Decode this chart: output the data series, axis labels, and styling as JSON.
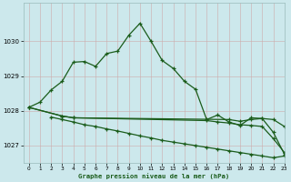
{
  "bg_color": "#cce8ec",
  "grid_color": "#aacccc",
  "line_color": "#1a5c1a",
  "title": "Graphe pression niveau de la mer (hPa)",
  "ylim": [
    1026.5,
    1031.1
  ],
  "xlim": [
    -0.5,
    23
  ],
  "yticks": [
    1027,
    1028,
    1029,
    1030
  ],
  "xticks": [
    0,
    1,
    2,
    3,
    4,
    5,
    6,
    7,
    8,
    9,
    10,
    11,
    12,
    13,
    14,
    15,
    16,
    17,
    18,
    19,
    20,
    21,
    22,
    23
  ],
  "series": [
    {
      "x": [
        0,
        1,
        2,
        3,
        4,
        5,
        6,
        7,
        8,
        9,
        10,
        11,
        12,
        13,
        14,
        15,
        16,
        17,
        18,
        19,
        20,
        21,
        22,
        23
      ],
      "y": [
        1028.1,
        1028.25,
        1028.6,
        1028.85,
        1029.4,
        1029.42,
        1029.28,
        1029.65,
        1029.72,
        1030.18,
        1030.52,
        1030.0,
        1029.45,
        1029.22,
        1028.85,
        1028.62,
        1027.75,
        1027.88,
        1027.68,
        1027.58,
        1027.8,
        1027.78,
        1027.38,
        1026.75
      ]
    },
    {
      "x": [
        0,
        3,
        4,
        18,
        19,
        20,
        21,
        22,
        23
      ],
      "y": [
        1028.1,
        1027.85,
        1027.8,
        1027.75,
        1027.7,
        1027.75,
        1027.78,
        1027.75,
        1027.55
      ]
    },
    {
      "x": [
        0,
        3,
        4,
        16,
        17,
        18,
        19,
        20,
        21,
        22,
        23
      ],
      "y": [
        1028.1,
        1027.85,
        1027.8,
        1027.72,
        1027.68,
        1027.65,
        1027.6,
        1027.58,
        1027.55,
        1027.2,
        1026.8
      ]
    },
    {
      "x": [
        2,
        3,
        4,
        5,
        6,
        7,
        8,
        9,
        10,
        11,
        12,
        13,
        14,
        15,
        16,
        17,
        18,
        19,
        20,
        21,
        22,
        23
      ],
      "y": [
        1027.82,
        1027.75,
        1027.68,
        1027.6,
        1027.55,
        1027.48,
        1027.42,
        1027.35,
        1027.28,
        1027.22,
        1027.15,
        1027.1,
        1027.05,
        1027.0,
        1026.95,
        1026.9,
        1026.85,
        1026.8,
        1026.75,
        1026.7,
        1026.65,
        1026.7
      ]
    }
  ]
}
